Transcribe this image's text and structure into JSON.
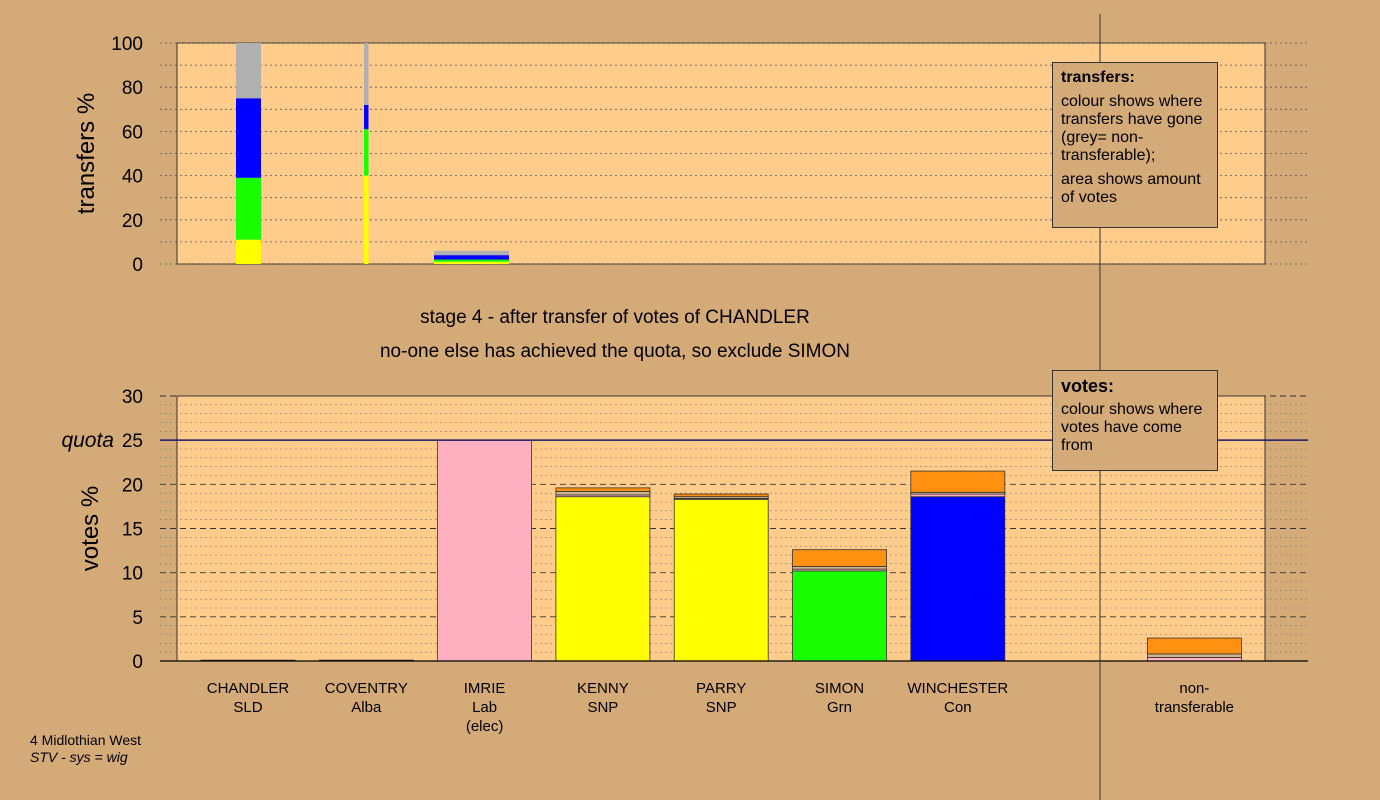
{
  "title": {
    "stage_line": "stage 4 - after transfer of votes of CHANDLER",
    "decision_line": "no-one else has achieved the quota, so exclude SIMON"
  },
  "legends": {
    "transfers": {
      "title": "transfers:",
      "line1": "colour shows where transfers have gone (grey= non-transferable);",
      "line2": "area shows amount of votes"
    },
    "votes": {
      "title": "votes:",
      "line1": "colour shows where votes have come from"
    }
  },
  "footer": {
    "constituency": "4 Midlothian West",
    "system": "STV - sys = wig"
  },
  "colors": {
    "panel": "#ffcc8c",
    "background": "#d4aa78",
    "SLD": "#ff9010",
    "Alba": "#d2b48c",
    "Lab": "#ffb0c0",
    "SNP": "#ffff00",
    "Grn": "#19ff00",
    "Con": "#0000ff",
    "NT": "#b0b0b0"
  },
  "chart_data": [
    {
      "type": "bar",
      "stacked": true,
      "ylabel": "transfers %",
      "ylim": [
        0,
        100
      ],
      "yticks": [
        0,
        20,
        40,
        60,
        80,
        100
      ],
      "bars": [
        {
          "name": "CHANDLER",
          "width_share": 1.0,
          "segments": [
            {
              "party": "SNP",
              "value": 11
            },
            {
              "party": "Grn",
              "value": 28
            },
            {
              "party": "Con",
              "value": 36
            },
            {
              "party": "NT",
              "value": 25
            }
          ]
        },
        {
          "name": "COVENTRY",
          "width_share": 0.18,
          "segments": [
            {
              "party": "SNP",
              "value": 40
            },
            {
              "party": "Grn",
              "value": 21
            },
            {
              "party": "Con",
              "value": 11
            },
            {
              "party": "NT",
              "value": 28
            }
          ]
        },
        {
          "name": "IMRIE",
          "width_share": 3.0,
          "segments": [
            {
              "party": "SNP",
              "value": 1
            },
            {
              "party": "Grn",
              "value": 1
            },
            {
              "party": "Con",
              "value": 2
            },
            {
              "party": "NT",
              "value": 2
            }
          ]
        }
      ]
    },
    {
      "type": "bar",
      "stacked": true,
      "ylabel": "votes %",
      "ylim": [
        0,
        30
      ],
      "yticks": [
        0,
        5,
        10,
        15,
        20,
        25,
        30
      ],
      "quota": {
        "label": "quota",
        "value": 25
      },
      "categories": [
        {
          "name": "CHANDLER",
          "party": "SLD"
        },
        {
          "name": "COVENTRY",
          "party": "Alba"
        },
        {
          "name": "IMRIE",
          "party": "Lab",
          "note": "(elec)"
        },
        {
          "name": "KENNY",
          "party": "SNP"
        },
        {
          "name": "PARRY",
          "party": "SNP"
        },
        {
          "name": "SIMON",
          "party": "Grn"
        },
        {
          "name": "WINCHESTER",
          "party": "Con"
        },
        {
          "name": "non-",
          "party": "transferable"
        }
      ],
      "stacks": [
        [
          {
            "party": "SLD",
            "value": 0.1
          }
        ],
        [
          {
            "party": "Alba",
            "value": 0.1
          }
        ],
        [
          {
            "party": "Lab",
            "value": 25.0
          }
        ],
        [
          {
            "party": "SNP",
            "value": 18.6
          },
          {
            "party": "Lab",
            "value": 0.2
          },
          {
            "party": "Alba",
            "value": 0.4
          },
          {
            "party": "SLD",
            "value": 0.4
          }
        ],
        [
          {
            "party": "SNP",
            "value": 18.3
          },
          {
            "party": "Lab",
            "value": 0.1
          },
          {
            "party": "Alba",
            "value": 0.2
          },
          {
            "party": "SLD",
            "value": 0.3
          }
        ],
        [
          {
            "party": "Grn",
            "value": 10.2
          },
          {
            "party": "Lab",
            "value": 0.2
          },
          {
            "party": "Alba",
            "value": 0.3
          },
          {
            "party": "SLD",
            "value": 1.9
          }
        ],
        [
          {
            "party": "Con",
            "value": 18.6
          },
          {
            "party": "Lab",
            "value": 0.3
          },
          {
            "party": "Alba",
            "value": 0.2
          },
          {
            "party": "SLD",
            "value": 2.4
          }
        ],
        [
          {
            "party": "Lab",
            "value": 0.4
          },
          {
            "party": "Alba",
            "value": 0.4
          },
          {
            "party": "SLD",
            "value": 1.8
          }
        ]
      ]
    }
  ]
}
